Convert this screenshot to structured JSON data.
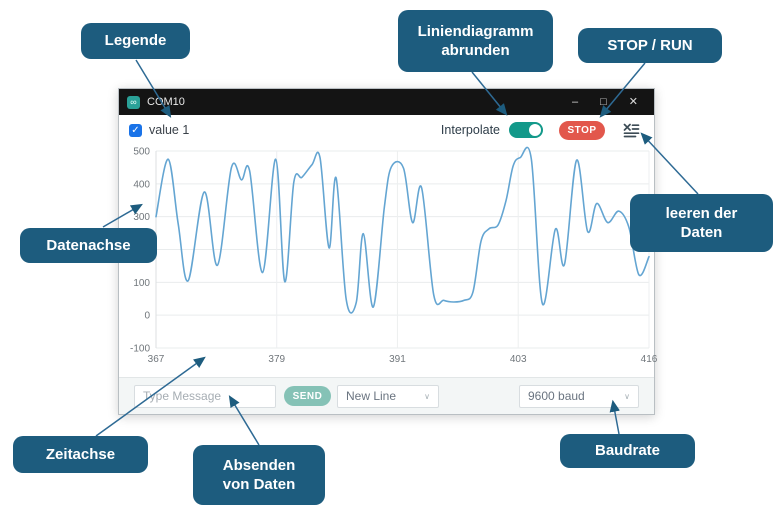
{
  "window": {
    "title": "COM10",
    "controls": {
      "minimize": "–",
      "maximize": "□",
      "close": "✕"
    },
    "toolbar": {
      "legend_label": "value 1",
      "legend_checked": true,
      "check_glyph": "✓",
      "interpolate_label": "Interpolate",
      "interpolate_on": true,
      "stop_label": "STOP"
    },
    "bottom_bar": {
      "message_placeholder": "Type Message",
      "send_label": "SEND",
      "line_ending_value": "New Line",
      "baud_value": "9600 baud",
      "chevron_glyph": "∨"
    }
  },
  "chart_data": {
    "type": "line",
    "title": "",
    "xlabel": "",
    "ylabel": "",
    "xlim": [
      367,
      416
    ],
    "ylim": [
      -100,
      500
    ],
    "x_ticks": [
      367,
      379,
      391,
      403,
      416
    ],
    "y_ticks": [
      500,
      400,
      300,
      200,
      100,
      0,
      -100
    ],
    "grid": true,
    "legend_position": "top-left-checkbox",
    "series": [
      {
        "name": "value 1",
        "points": [
          [
            367.0,
            300
          ],
          [
            368.2,
            475
          ],
          [
            369.2,
            280
          ],
          [
            370.2,
            105
          ],
          [
            371.8,
            375
          ],
          [
            373.1,
            152
          ],
          [
            374.5,
            450
          ],
          [
            375.5,
            412
          ],
          [
            376.3,
            440
          ],
          [
            377.6,
            130
          ],
          [
            378.9,
            475
          ],
          [
            379.8,
            102
          ],
          [
            380.7,
            405
          ],
          [
            381.5,
            420
          ],
          [
            382.5,
            458
          ],
          [
            383.3,
            480
          ],
          [
            384.2,
            205
          ],
          [
            384.9,
            418
          ],
          [
            385.9,
            48
          ],
          [
            386.9,
            38
          ],
          [
            387.6,
            248
          ],
          [
            388.6,
            25
          ],
          [
            389.7,
            330
          ],
          [
            390.4,
            452
          ],
          [
            391.6,
            448
          ],
          [
            392.5,
            282
          ],
          [
            393.4,
            388
          ],
          [
            394.6,
            62
          ],
          [
            395.6,
            45
          ],
          [
            396.6,
            40
          ],
          [
            397.6,
            45
          ],
          [
            398.5,
            70
          ],
          [
            399.3,
            225
          ],
          [
            400.1,
            263
          ],
          [
            401.0,
            275
          ],
          [
            401.8,
            350
          ],
          [
            402.5,
            455
          ],
          [
            403.2,
            480
          ],
          [
            404.3,
            476
          ],
          [
            405.4,
            35
          ],
          [
            406.7,
            262
          ],
          [
            407.6,
            155
          ],
          [
            408.8,
            472
          ],
          [
            409.9,
            255
          ],
          [
            410.8,
            340
          ],
          [
            411.9,
            282
          ],
          [
            413.0,
            317
          ],
          [
            414.0,
            268
          ],
          [
            415.0,
            123
          ],
          [
            416.0,
            178
          ]
        ]
      }
    ]
  },
  "annotations": [
    {
      "id": "legende",
      "label": "Legende"
    },
    {
      "id": "liniendiagramm",
      "label": "Liniendiagramm\nabrunden"
    },
    {
      "id": "stop-run",
      "label": "STOP / RUN"
    },
    {
      "id": "leeren",
      "label": "leeren der\nDaten"
    },
    {
      "id": "datenachse",
      "label": "Datenachse"
    },
    {
      "id": "zeitachse",
      "label": "Zeitachse"
    },
    {
      "id": "absenden",
      "label": "Absenden\nvon Daten"
    },
    {
      "id": "baudrate",
      "label": "Baudrate"
    }
  ],
  "colors": {
    "callout_bg": "#1d5c7e",
    "arrow_line": "#2e6a94",
    "arrow_head": "#1d5c7e",
    "chart_line": "#64a5d2",
    "toggle_on": "#13998a",
    "stop_red": "#e2574c",
    "send_teal": "#85c2b6",
    "checkbox_blue": "#1a73e8",
    "titlebar_bg": "#141414",
    "bottombar_bg": "#f3f6f6"
  }
}
